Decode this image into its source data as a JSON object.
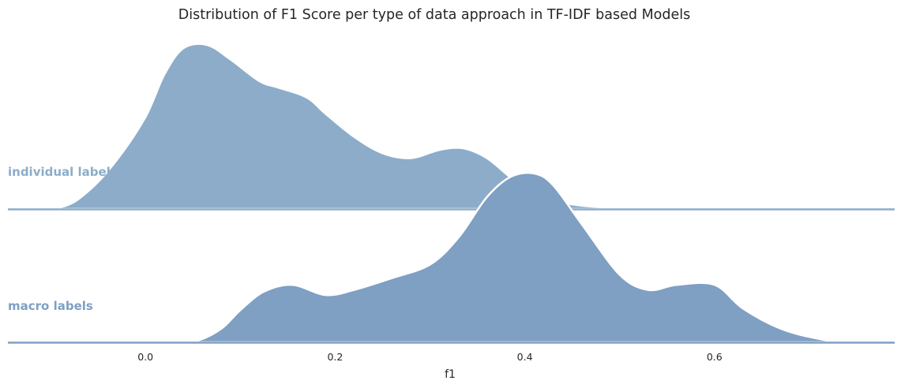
{
  "chart_data": {
    "type": "area",
    "subtype": "ridgeline-kde",
    "title": "Distribution of F1 Score per type of data approach in TF-IDF based Models",
    "xlabel": "f1",
    "ylabel": "",
    "xlim": [
      -0.145,
      0.79
    ],
    "x_ticks": [
      0.0,
      0.2,
      0.4,
      0.6
    ],
    "x_tick_labels": [
      "0.0",
      "0.2",
      "0.4",
      "0.6"
    ],
    "grid": false,
    "legend": "none",
    "series": [
      {
        "name": "individual labels",
        "color": "#8cacca",
        "x": [
          -0.145,
          -0.09,
          -0.06,
          -0.03,
          0.0,
          0.02,
          0.04,
          0.065,
          0.09,
          0.12,
          0.14,
          0.17,
          0.19,
          0.22,
          0.25,
          0.28,
          0.31,
          0.335,
          0.36,
          0.39,
          0.42,
          0.46,
          0.52,
          0.6,
          0.68,
          0.79
        ],
        "density": [
          0.0,
          0.01,
          0.11,
          0.3,
          0.56,
          0.82,
          0.98,
          1.0,
          0.91,
          0.78,
          0.74,
          0.68,
          0.58,
          0.44,
          0.34,
          0.31,
          0.36,
          0.37,
          0.31,
          0.17,
          0.07,
          0.02,
          0.005,
          0.0,
          0.0,
          0.0
        ]
      },
      {
        "name": "macro labels",
        "color": "#7f9fc3",
        "x": [
          -0.145,
          0.03,
          0.055,
          0.08,
          0.1,
          0.125,
          0.155,
          0.19,
          0.22,
          0.26,
          0.3,
          0.33,
          0.36,
          0.385,
          0.41,
          0.43,
          0.46,
          0.5,
          0.53,
          0.56,
          0.6,
          0.63,
          0.67,
          0.71,
          0.74,
          0.79
        ],
        "density": [
          0.0,
          0.0,
          0.01,
          0.08,
          0.19,
          0.3,
          0.34,
          0.28,
          0.31,
          0.38,
          0.46,
          0.62,
          0.86,
          0.98,
          1.0,
          0.93,
          0.7,
          0.4,
          0.31,
          0.34,
          0.34,
          0.2,
          0.08,
          0.02,
          0.0,
          0.0
        ]
      }
    ]
  }
}
